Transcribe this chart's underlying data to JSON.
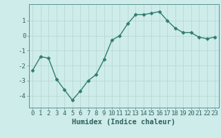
{
  "x": [
    0,
    1,
    2,
    3,
    4,
    5,
    6,
    7,
    8,
    9,
    10,
    11,
    12,
    13,
    14,
    15,
    16,
    17,
    18,
    19,
    20,
    21,
    22,
    23
  ],
  "y": [
    -2.3,
    -1.4,
    -1.5,
    -2.9,
    -3.6,
    -4.3,
    -3.7,
    -3.0,
    -2.6,
    -1.6,
    -0.3,
    0.0,
    0.8,
    1.4,
    1.4,
    1.5,
    1.6,
    1.0,
    0.5,
    0.2,
    0.2,
    -0.1,
    -0.2,
    -0.1
  ],
  "line_color": "#2e7d6e",
  "marker": "D",
  "markersize": 2.5,
  "linewidth": 1.0,
  "bg_color": "#ceecea",
  "grid_color": "#b8d8d5",
  "xlabel": "Humidex (Indice chaleur)",
  "xlim": [
    -0.5,
    23.5
  ],
  "ylim": [
    -4.8,
    2.1
  ],
  "yticks": [
    -4,
    -3,
    -2,
    -1,
    0,
    1
  ],
  "xticks": [
    0,
    1,
    2,
    3,
    4,
    5,
    6,
    7,
    8,
    9,
    10,
    11,
    12,
    13,
    14,
    15,
    16,
    17,
    18,
    19,
    20,
    21,
    22,
    23
  ],
  "tick_fontsize": 6.5,
  "xlabel_fontsize": 7.5,
  "axis_color": "#2e6060",
  "spine_color": "#5a9090"
}
